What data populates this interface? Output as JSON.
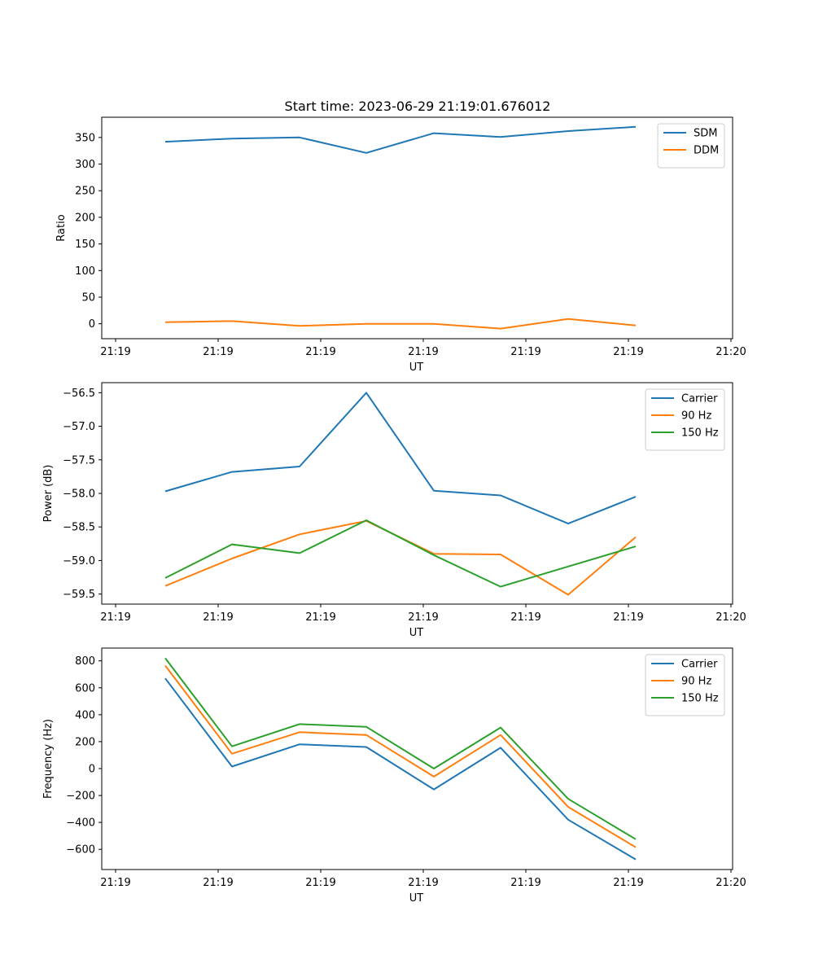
{
  "figure": {
    "title": "Start time: 2023-06-29 21:19:01.676012"
  },
  "chart_data": [
    {
      "type": "line",
      "xlabel": "UT",
      "ylabel": "Ratio",
      "x_tick_labels": [
        "21:19",
        "21:19",
        "21:19",
        "21:19",
        "21:19",
        "21:19",
        "21:20"
      ],
      "y_ticks": [
        0,
        50,
        100,
        150,
        200,
        250,
        300,
        350
      ],
      "ylim": [
        -28,
        388
      ],
      "x_sample_count": 8,
      "legend_position": "upper right",
      "series": [
        {
          "name": "SDM",
          "color": "#1f77b4",
          "values": [
            342,
            348,
            350,
            321,
            358,
            351,
            362,
            370
          ]
        },
        {
          "name": "DDM",
          "color": "#ff7f0e",
          "values": [
            3,
            5,
            -4,
            0,
            0,
            -9,
            9,
            -3
          ]
        }
      ]
    },
    {
      "type": "line",
      "xlabel": "UT",
      "ylabel": "Power (dB)",
      "x_tick_labels": [
        "21:19",
        "21:19",
        "21:19",
        "21:19",
        "21:19",
        "21:19",
        "21:20"
      ],
      "y_ticks": [
        -56.5,
        -57.0,
        -57.5,
        -58.0,
        -58.5,
        -59.0,
        -59.5
      ],
      "y_tick_labels": [
        "−56.5",
        "−57.0",
        "−57.5",
        "−58.0",
        "−58.5",
        "−59.0",
        "−59.5"
      ],
      "ylim": [
        -59.65,
        -56.35
      ],
      "x_sample_count": 8,
      "legend_position": "upper right",
      "series": [
        {
          "name": "Carrier",
          "color": "#1f77b4",
          "values": [
            -57.97,
            -57.68,
            -57.6,
            -56.5,
            -57.96,
            -58.03,
            -58.45,
            -58.05
          ]
        },
        {
          "name": "90 Hz",
          "color": "#ff7f0e",
          "values": [
            -59.38,
            -58.97,
            -58.61,
            -58.41,
            -58.9,
            -58.91,
            -59.51,
            -58.65
          ]
        },
        {
          "name": "150 Hz",
          "color": "#2ca02c",
          "values": [
            -59.26,
            -58.76,
            -58.89,
            -58.4,
            -58.92,
            -59.39,
            -59.09,
            -58.79
          ]
        }
      ]
    },
    {
      "type": "line",
      "xlabel": "UT",
      "ylabel": "Frequency (Hz)",
      "x_tick_labels": [
        "21:19",
        "21:19",
        "21:19",
        "21:19",
        "21:19",
        "21:19",
        "21:20"
      ],
      "y_ticks": [
        800,
        600,
        400,
        200,
        0,
        -200,
        -400,
        -600
      ],
      "y_tick_labels": [
        "800",
        "600",
        "400",
        "200",
        "0",
        "−200",
        "−400",
        "−600"
      ],
      "ylim": [
        -750,
        895
      ],
      "x_sample_count": 8,
      "legend_position": "upper right",
      "series": [
        {
          "name": "Carrier",
          "color": "#1f77b4",
          "values": [
            670,
            15,
            180,
            160,
            -155,
            155,
            -380,
            -675
          ]
        },
        {
          "name": "90 Hz",
          "color": "#ff7f0e",
          "values": [
            765,
            110,
            270,
            250,
            -60,
            250,
            -285,
            -585
          ]
        },
        {
          "name": "150 Hz",
          "color": "#2ca02c",
          "values": [
            820,
            165,
            330,
            310,
            0,
            305,
            -225,
            -525
          ]
        }
      ]
    }
  ]
}
